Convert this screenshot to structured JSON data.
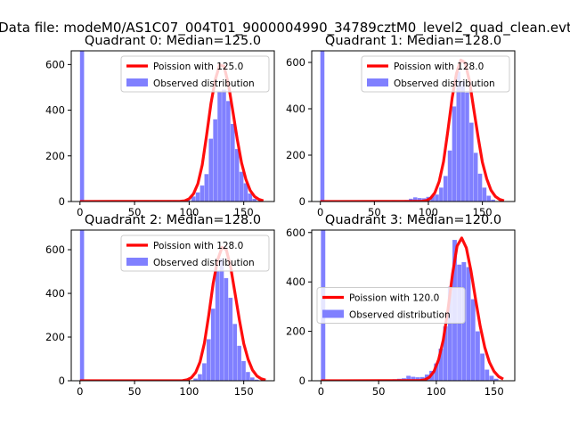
{
  "figure": {
    "suptitle": "Data file: modeM0/AS1C07_004T01_9000004990_34789cztM0_level2_quad_clean.evt"
  },
  "colors": {
    "poisson": "#ff0000",
    "histogram": "#8080ff",
    "axes": "#000000",
    "background": "#ffffff"
  },
  "chart_data": [
    {
      "type": "histogram+line",
      "title": "Quadrant 0: Median=125.0",
      "xlim": [
        -8,
        178
      ],
      "ylim": [
        0,
        660
      ],
      "xticks": [
        0,
        50,
        100,
        150
      ],
      "yticks": [
        0,
        200,
        400,
        600
      ],
      "legend": [
        "Poission with 125.0",
        "Observed distribution"
      ],
      "legend_loc": "upper right",
      "bar_width": 4,
      "bins": [
        [
          0,
          660
        ],
        [
          59,
          4
        ],
        [
          63,
          3
        ],
        [
          68,
          5
        ],
        [
          72,
          4
        ],
        [
          76,
          3
        ],
        [
          80,
          5
        ],
        [
          85,
          5
        ],
        [
          89,
          4
        ],
        [
          93,
          6
        ],
        [
          97,
          8
        ],
        [
          102,
          22
        ],
        [
          106,
          40
        ],
        [
          110,
          70
        ],
        [
          114,
          120
        ],
        [
          118,
          275
        ],
        [
          122,
          360
        ],
        [
          126,
          480
        ],
        [
          130,
          490
        ],
        [
          134,
          440
        ],
        [
          138,
          340
        ],
        [
          142,
          230
        ],
        [
          146,
          130
        ],
        [
          150,
          80
        ],
        [
          154,
          35
        ],
        [
          158,
          12
        ],
        [
          162,
          3
        ]
      ],
      "poisson_x": [
        0,
        92,
        96,
        100,
        104,
        108,
        112,
        116,
        120,
        124,
        128,
        132,
        136,
        140,
        144,
        148,
        152,
        156,
        160,
        164,
        168
      ],
      "poisson_y": [
        0,
        1,
        3,
        12,
        34,
        78,
        161,
        291,
        430,
        535,
        599,
        592,
        513,
        396,
        275,
        170,
        97,
        48,
        22,
        9,
        3
      ]
    },
    {
      "type": "histogram+line",
      "title": "Quadrant 1: Median=128.0",
      "xlim": [
        -8,
        180
      ],
      "ylim": [
        0,
        650
      ],
      "xticks": [
        0,
        50,
        100,
        150
      ],
      "yticks": [
        0,
        200,
        400,
        600
      ],
      "legend": [
        "Poission with 128.0",
        "Observed distribution"
      ],
      "legend_loc": "upper right",
      "bar_width": 4,
      "bins": [
        [
          0,
          650
        ],
        [
          66,
          5
        ],
        [
          70,
          4
        ],
        [
          74,
          3
        ],
        [
          78,
          6
        ],
        [
          82,
          12
        ],
        [
          86,
          18
        ],
        [
          90,
          15
        ],
        [
          94,
          14
        ],
        [
          98,
          20
        ],
        [
          102,
          25
        ],
        [
          106,
          30
        ],
        [
          110,
          60
        ],
        [
          114,
          110
        ],
        [
          118,
          220
        ],
        [
          122,
          410
        ],
        [
          126,
          560
        ],
        [
          130,
          520
        ],
        [
          134,
          470
        ],
        [
          138,
          340
        ],
        [
          142,
          210
        ],
        [
          146,
          120
        ],
        [
          150,
          60
        ],
        [
          154,
          25
        ],
        [
          158,
          8
        ]
      ],
      "poisson_x": [
        0,
        94,
        98,
        102,
        106,
        110,
        114,
        118,
        122,
        126,
        130,
        134,
        138,
        142,
        146,
        150,
        154,
        158,
        162,
        166,
        170
      ],
      "poisson_y": [
        0,
        1,
        4,
        14,
        38,
        86,
        172,
        303,
        447,
        552,
        610,
        600,
        520,
        400,
        279,
        170,
        98,
        49,
        22,
        9,
        3
      ]
    },
    {
      "type": "histogram+line",
      "title": "Quadrant 2: Median=128.0",
      "xlim": [
        -8,
        178
      ],
      "ylim": [
        0,
        690
      ],
      "xticks": [
        0,
        50,
        100,
        150
      ],
      "yticks": [
        0,
        200,
        400,
        600
      ],
      "legend": [
        "Poission with 128.0",
        "Observed distribution"
      ],
      "legend_loc": "upper right",
      "bar_width": 4,
      "bins": [
        [
          0,
          690
        ],
        [
          104,
          10
        ],
        [
          108,
          30
        ],
        [
          112,
          80
        ],
        [
          116,
          190
        ],
        [
          120,
          330
        ],
        [
          124,
          500
        ],
        [
          128,
          560
        ],
        [
          132,
          470
        ],
        [
          136,
          380
        ],
        [
          140,
          260
        ],
        [
          144,
          160
        ],
        [
          148,
          90
        ],
        [
          152,
          40
        ],
        [
          156,
          15
        ],
        [
          160,
          5
        ]
      ],
      "poisson_x": [
        0,
        94,
        98,
        102,
        106,
        110,
        114,
        118,
        122,
        126,
        130,
        134,
        138,
        142,
        146,
        150,
        154,
        158,
        162,
        166,
        170
      ],
      "poisson_y": [
        0,
        1,
        4,
        14,
        38,
        86,
        172,
        303,
        447,
        552,
        610,
        600,
        520,
        400,
        279,
        170,
        98,
        49,
        22,
        9,
        3
      ]
    },
    {
      "type": "histogram+line",
      "title": "Quadrant 3: Median=120.0",
      "xlim": [
        -8,
        168
      ],
      "ylim": [
        0,
        610
      ],
      "xticks": [
        0,
        50,
        100,
        150
      ],
      "yticks": [
        0,
        200,
        400,
        600
      ],
      "legend": [
        "Poission with 120.0",
        "Observed distribution"
      ],
      "legend_loc": "center left",
      "bar_width": 4,
      "bins": [
        [
          0,
          610
        ],
        [
          50,
          3
        ],
        [
          54,
          4
        ],
        [
          58,
          4
        ],
        [
          62,
          6
        ],
        [
          66,
          8
        ],
        [
          70,
          10
        ],
        [
          74,
          20
        ],
        [
          78,
          16
        ],
        [
          82,
          14
        ],
        [
          86,
          15
        ],
        [
          90,
          25
        ],
        [
          94,
          40
        ],
        [
          98,
          70
        ],
        [
          102,
          130
        ],
        [
          106,
          220
        ],
        [
          110,
          380
        ],
        [
          114,
          570
        ],
        [
          118,
          470
        ],
        [
          122,
          480
        ],
        [
          126,
          460
        ],
        [
          130,
          330
        ],
        [
          134,
          200
        ],
        [
          138,
          110
        ],
        [
          142,
          45
        ],
        [
          146,
          20
        ],
        [
          150,
          8
        ]
      ],
      "poisson_x": [
        0,
        86,
        90,
        94,
        98,
        102,
        106,
        110,
        114,
        118,
        122,
        126,
        130,
        134,
        138,
        142,
        146,
        150,
        154,
        158
      ],
      "poisson_y": [
        0,
        1,
        4,
        14,
        38,
        86,
        165,
        286,
        430,
        545,
        578,
        538,
        445,
        330,
        222,
        135,
        75,
        38,
        17,
        7
      ]
    }
  ]
}
